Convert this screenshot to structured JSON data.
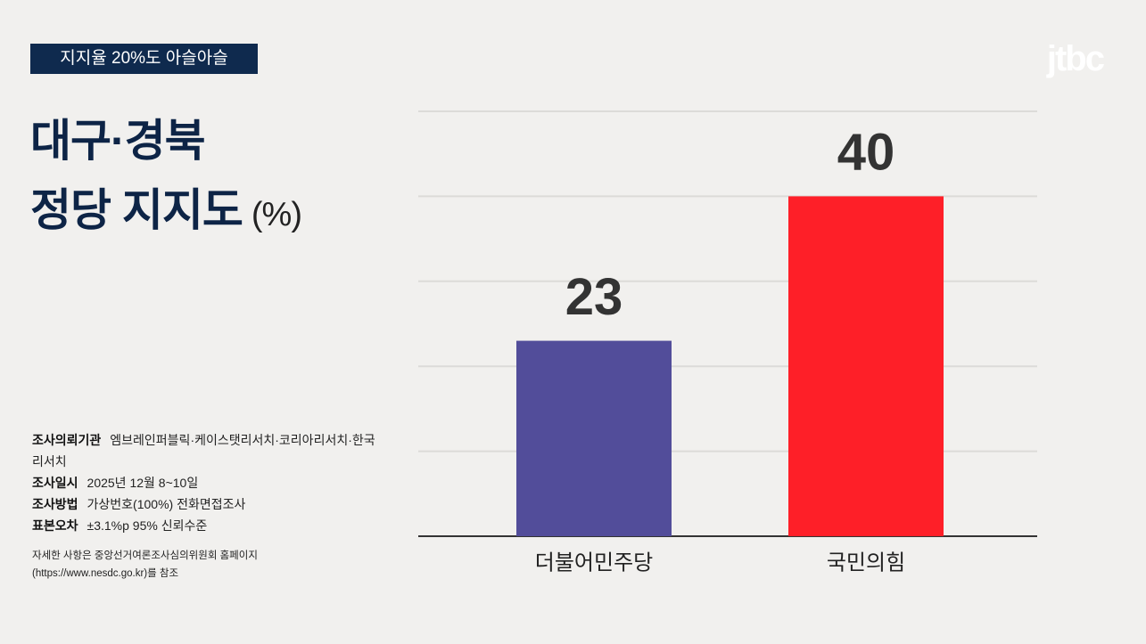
{
  "logo": "jtbc",
  "badge": "지지율 20%도 아슬아슬",
  "notes": [
    {
      "label": "조사의뢰기관",
      "text": "엠브레인퍼블릭·케이스탯리서치·코리아리서치·한국리서치"
    },
    {
      "label": "조사일시",
      "text": "2025년 12월 8~10일"
    },
    {
      "label": "조사방법",
      "text": "가상번호(100%) 전화면접조사"
    },
    {
      "label": "표본오차",
      "text": "±3.1%p 95% 신뢰수준"
    }
  ],
  "footnote": "자세한 사항은 중앙선거여론조사심의위원회 홈페이지 (https://www.nesdc.go.kr)를 참조",
  "chart_data": {
    "type": "bar",
    "title": [
      "대구·경북",
      "정당 지지도"
    ],
    "unit": "(%)",
    "categories": [
      "더불어민주당",
      "국민의힘"
    ],
    "values": [
      23,
      40
    ],
    "colors": [
      "#524d9a",
      "#fe1f28"
    ],
    "ylim": [
      0,
      50
    ],
    "yticks": [
      0,
      10,
      20,
      30,
      40,
      50
    ],
    "grid": true
  }
}
